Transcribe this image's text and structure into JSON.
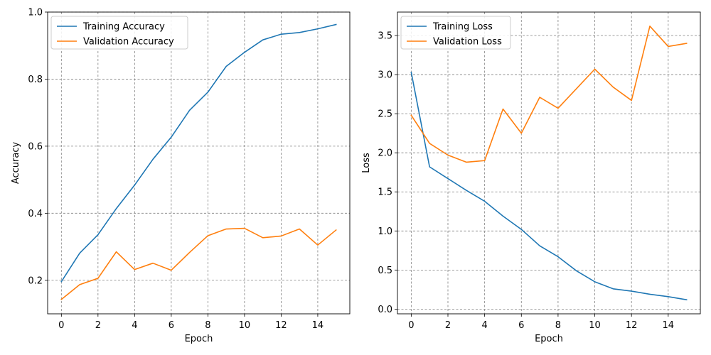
{
  "chart_data": [
    {
      "type": "line",
      "xlabel": "Epoch",
      "ylabel": "Accuracy",
      "xlim": [
        -0.75,
        15.75
      ],
      "ylim": [
        0.1,
        1.0
      ],
      "xticks": [
        0,
        2,
        4,
        6,
        8,
        10,
        12,
        14
      ],
      "yticks": [
        0.2,
        0.4,
        0.6,
        0.8,
        1.0
      ],
      "xtick_labels": [
        "0",
        "2",
        "4",
        "6",
        "8",
        "10",
        "12",
        "14"
      ],
      "ytick_labels": [
        "0.2",
        "0.4",
        "0.6",
        "0.8",
        "1.0"
      ],
      "grid": true,
      "legend_position": "top-left",
      "x": [
        0,
        1,
        2,
        3,
        4,
        5,
        6,
        7,
        8,
        9,
        10,
        11,
        12,
        13,
        14,
        15
      ],
      "series": [
        {
          "name": "Training Accuracy",
          "color": "#1f77b4",
          "values": [
            0.196,
            0.281,
            0.336,
            0.414,
            0.484,
            0.561,
            0.627,
            0.707,
            0.761,
            0.838,
            0.88,
            0.917,
            0.934,
            0.939,
            0.95,
            0.963
          ]
        },
        {
          "name": "Validation Accuracy",
          "color": "#ff7f0e",
          "values": [
            0.143,
            0.187,
            0.206,
            0.285,
            0.232,
            0.251,
            0.23,
            0.283,
            0.333,
            0.353,
            0.355,
            0.327,
            0.332,
            0.353,
            0.305,
            0.35
          ]
        }
      ]
    },
    {
      "type": "line",
      "xlabel": "Epoch",
      "ylabel": "Loss",
      "xlim": [
        -0.75,
        15.75
      ],
      "ylim": [
        -0.06,
        3.8
      ],
      "xticks": [
        0,
        2,
        4,
        6,
        8,
        10,
        12,
        14
      ],
      "yticks": [
        0.0,
        0.5,
        1.0,
        1.5,
        2.0,
        2.5,
        3.0,
        3.5
      ],
      "xtick_labels": [
        "0",
        "2",
        "4",
        "6",
        "8",
        "10",
        "12",
        "14"
      ],
      "ytick_labels": [
        "0.0",
        "0.5",
        "1.0",
        "1.5",
        "2.0",
        "2.5",
        "3.0",
        "3.5"
      ],
      "grid": true,
      "legend_position": "top-left",
      "x": [
        0,
        1,
        2,
        3,
        4,
        5,
        6,
        7,
        8,
        9,
        10,
        11,
        12,
        13,
        14,
        15
      ],
      "series": [
        {
          "name": "Training Loss",
          "color": "#1f77b4",
          "values": [
            3.03,
            1.82,
            1.67,
            1.52,
            1.38,
            1.19,
            1.02,
            0.81,
            0.67,
            0.49,
            0.35,
            0.26,
            0.23,
            0.19,
            0.16,
            0.12
          ]
        },
        {
          "name": "Validation Loss",
          "color": "#ff7f0e",
          "values": [
            2.48,
            2.12,
            1.97,
            1.88,
            1.9,
            2.56,
            2.25,
            2.71,
            2.57,
            2.82,
            3.07,
            2.84,
            2.67,
            3.62,
            3.36,
            3.4
          ]
        }
      ]
    }
  ]
}
